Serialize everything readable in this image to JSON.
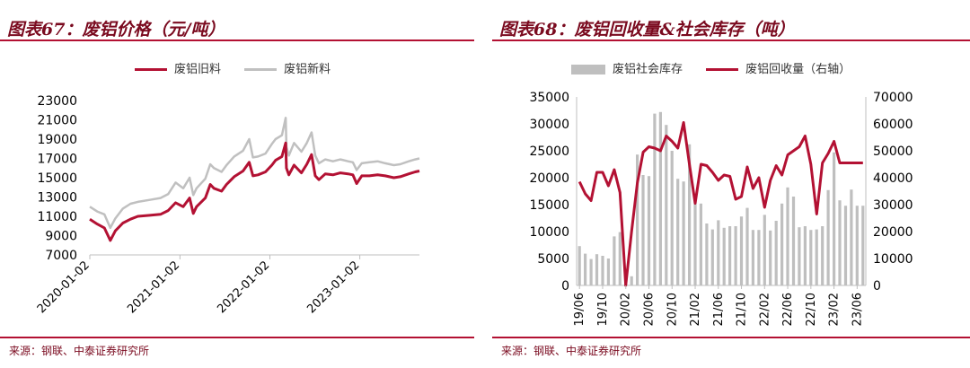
{
  "colors": {
    "accent": "#b31133",
    "title": "#7a0a1f",
    "gray_line": "#c0c0c0",
    "gray_bar": "#bfbfbf",
    "axis": "#bfbfbf"
  },
  "left": {
    "title": "图表67：废铝价格（元/吨）",
    "source": "来源：钢联、中泰证券研究所"
  },
  "right": {
    "title": "图表68：废铝回收量&社会库存（吨）",
    "source": "来源：钢联、中泰证券研究所"
  },
  "chart_data": [
    {
      "type": "line",
      "title": "废铝价格（元/吨）",
      "x_type": "date",
      "xrange": [
        "2020-01-02",
        "2023-09-01"
      ],
      "xticks": [
        "2020-01-02",
        "2021-01-02",
        "2022-01-02",
        "2023-01-02"
      ],
      "ylim": [
        7000,
        23000
      ],
      "yticks": [
        7000,
        9000,
        11000,
        13000,
        15000,
        17000,
        19000,
        21000,
        23000
      ],
      "legend_position": "top",
      "series": [
        {
          "name": "废铝旧料",
          "color": "#b31133",
          "points": [
            [
              "2020-01-02",
              10700
            ],
            [
              "2020-02-01",
              10200
            ],
            [
              "2020-03-01",
              9800
            ],
            [
              "2020-03-25",
              8500
            ],
            [
              "2020-04-15",
              9500
            ],
            [
              "2020-05-15",
              10300
            ],
            [
              "2020-06-15",
              10700
            ],
            [
              "2020-07-15",
              11000
            ],
            [
              "2020-09-01",
              11100
            ],
            [
              "2020-10-15",
              11200
            ],
            [
              "2020-11-15",
              11600
            ],
            [
              "2020-12-15",
              12400
            ],
            [
              "2021-01-15",
              12000
            ],
            [
              "2021-02-10",
              12900
            ],
            [
              "2021-02-25",
              11300
            ],
            [
              "2021-03-10",
              12000
            ],
            [
              "2021-04-15",
              12900
            ],
            [
              "2021-05-05",
              14300
            ],
            [
              "2021-05-20",
              13900
            ],
            [
              "2021-06-20",
              13600
            ],
            [
              "2021-07-10",
              14300
            ],
            [
              "2021-08-10",
              15100
            ],
            [
              "2021-09-15",
              15700
            ],
            [
              "2021-10-10",
              16600
            ],
            [
              "2021-10-25",
              15200
            ],
            [
              "2021-11-15",
              15300
            ],
            [
              "2021-12-15",
              15600
            ],
            [
              "2022-01-10",
              16300
            ],
            [
              "2022-01-25",
              16800
            ],
            [
              "2022-02-20",
              17200
            ],
            [
              "2022-03-07",
              18600
            ],
            [
              "2022-03-10",
              16000
            ],
            [
              "2022-03-20",
              15300
            ],
            [
              "2022-04-10",
              16300
            ],
            [
              "2022-05-10",
              15500
            ],
            [
              "2022-06-01",
              16400
            ],
            [
              "2022-06-20",
              17400
            ],
            [
              "2022-07-05",
              15200
            ],
            [
              "2022-07-20",
              14800
            ],
            [
              "2022-08-15",
              15400
            ],
            [
              "2022-09-15",
              15300
            ],
            [
              "2022-10-15",
              15500
            ],
            [
              "2022-11-15",
              15400
            ],
            [
              "2022-12-05",
              15300
            ],
            [
              "2022-12-20",
              14400
            ],
            [
              "2023-01-10",
              15200
            ],
            [
              "2023-02-10",
              15200
            ],
            [
              "2023-03-15",
              15300
            ],
            [
              "2023-04-15",
              15200
            ],
            [
              "2023-05-20",
              15000
            ],
            [
              "2023-06-15",
              15100
            ],
            [
              "2023-07-20",
              15400
            ],
            [
              "2023-08-15",
              15600
            ],
            [
              "2023-09-01",
              15700
            ]
          ]
        },
        {
          "name": "废铝新料",
          "color": "#c0c0c0",
          "points": [
            [
              "2020-01-02",
              12000
            ],
            [
              "2020-02-01",
              11500
            ],
            [
              "2020-03-01",
              11200
            ],
            [
              "2020-03-25",
              9800
            ],
            [
              "2020-04-15",
              10800
            ],
            [
              "2020-05-15",
              11800
            ],
            [
              "2020-06-15",
              12300
            ],
            [
              "2020-07-15",
              12500
            ],
            [
              "2020-09-01",
              12700
            ],
            [
              "2020-10-15",
              12900
            ],
            [
              "2020-11-15",
              13300
            ],
            [
              "2020-12-15",
              14500
            ],
            [
              "2021-01-15",
              13900
            ],
            [
              "2021-02-10",
              15000
            ],
            [
              "2021-02-25",
              13200
            ],
            [
              "2021-03-10",
              13900
            ],
            [
              "2021-04-15",
              14900
            ],
            [
              "2021-05-05",
              16400
            ],
            [
              "2021-05-20",
              16000
            ],
            [
              "2021-06-20",
              15600
            ],
            [
              "2021-07-10",
              16300
            ],
            [
              "2021-08-10",
              17200
            ],
            [
              "2021-09-15",
              17800
            ],
            [
              "2021-10-10",
              19000
            ],
            [
              "2021-10-25",
              17100
            ],
            [
              "2021-11-15",
              17200
            ],
            [
              "2021-12-15",
              17500
            ],
            [
              "2022-01-10",
              18500
            ],
            [
              "2022-01-25",
              19000
            ],
            [
              "2022-02-20",
              19400
            ],
            [
              "2022-03-07",
              21200
            ],
            [
              "2022-03-10",
              18200
            ],
            [
              "2022-03-20",
              17300
            ],
            [
              "2022-04-10",
              18600
            ],
            [
              "2022-05-10",
              17700
            ],
            [
              "2022-06-01",
              18600
            ],
            [
              "2022-06-20",
              19700
            ],
            [
              "2022-07-05",
              17300
            ],
            [
              "2022-07-20",
              16500
            ],
            [
              "2022-08-15",
              16900
            ],
            [
              "2022-09-15",
              16700
            ],
            [
              "2022-10-15",
              16900
            ],
            [
              "2022-11-15",
              16700
            ],
            [
              "2022-12-05",
              16600
            ],
            [
              "2022-12-20",
              15800
            ],
            [
              "2023-01-10",
              16500
            ],
            [
              "2023-02-10",
              16600
            ],
            [
              "2023-03-15",
              16700
            ],
            [
              "2023-04-15",
              16500
            ],
            [
              "2023-05-20",
              16300
            ],
            [
              "2023-06-15",
              16400
            ],
            [
              "2023-07-20",
              16700
            ],
            [
              "2023-08-15",
              16900
            ],
            [
              "2023-09-01",
              17000
            ]
          ]
        }
      ]
    },
    {
      "type": "bar",
      "title": "废铝回收量&社会库存（吨）",
      "categories": [
        "19/06",
        "19/07",
        "19/08",
        "19/09",
        "19/10",
        "19/11",
        "19/12",
        "20/01",
        "20/02",
        "20/03",
        "20/04",
        "20/05",
        "20/06",
        "20/07",
        "20/08",
        "20/09",
        "20/10",
        "20/11",
        "20/12",
        "21/01",
        "21/02",
        "21/03",
        "21/04",
        "21/05",
        "21/06",
        "21/07",
        "21/08",
        "21/09",
        "21/10",
        "21/11",
        "21/12",
        "22/01",
        "22/02",
        "22/03",
        "22/04",
        "22/05",
        "22/06",
        "22/07",
        "22/08",
        "22/09",
        "22/10",
        "22/11",
        "22/12",
        "23/01",
        "23/02",
        "23/03",
        "23/04",
        "23/05",
        "23/06",
        "23/07"
      ],
      "xtick_labels": [
        "19/06",
        "19/10",
        "20/02",
        "20/06",
        "20/10",
        "21/02",
        "21/06",
        "21/10",
        "22/02",
        "22/06",
        "22/10",
        "23/02",
        "23/06"
      ],
      "ylim_left": [
        0,
        35000
      ],
      "yticks_left": [
        0,
        5000,
        10000,
        15000,
        20000,
        25000,
        30000,
        35000
      ],
      "ylim_right": [
        0,
        70000
      ],
      "yticks_right": [
        0,
        10000,
        20000,
        30000,
        40000,
        50000,
        60000,
        70000
      ],
      "legend_position": "top",
      "series": [
        {
          "name": "废铝社会库存",
          "kind": "bar",
          "axis": "left",
          "color": "#bfbfbf",
          "values": [
            7300,
            5900,
            4900,
            5800,
            5500,
            5000,
            9100,
            9900,
            1000,
            1700,
            24300,
            20500,
            20300,
            31900,
            32200,
            29800,
            25000,
            19800,
            19300,
            26200,
            16000,
            15200,
            11500,
            10400,
            12100,
            10700,
            11000,
            11000,
            12800,
            14400,
            10300,
            10300,
            13100,
            10200,
            12000,
            15200,
            18200,
            16500,
            10800,
            11000,
            10300,
            10400,
            11000,
            17700,
            24700,
            15800,
            14800,
            17800,
            14800,
            14800
          ]
        },
        {
          "name": "废铝回收量（右轴）",
          "kind": "line",
          "axis": "right",
          "color": "#b31133",
          "values": [
            38500,
            34000,
            31500,
            42000,
            42000,
            37000,
            43000,
            34500,
            0,
            20000,
            38000,
            49500,
            51500,
            51000,
            50000,
            55500,
            53500,
            51000,
            60500,
            45000,
            30500,
            45000,
            44500,
            42000,
            39000,
            41000,
            40500,
            32000,
            33000,
            44000,
            36000,
            40000,
            29000,
            39000,
            44500,
            41000,
            48500,
            50000,
            51500,
            55500,
            45000,
            26500,
            45500,
            49000,
            53500,
            45500,
            45500,
            45500,
            45500,
            45500
          ]
        }
      ]
    }
  ],
  "legends": {
    "left": [
      "废铝旧料",
      "废铝新料"
    ],
    "right": [
      "废铝社会库存",
      "废铝回收量（右轴）"
    ]
  }
}
